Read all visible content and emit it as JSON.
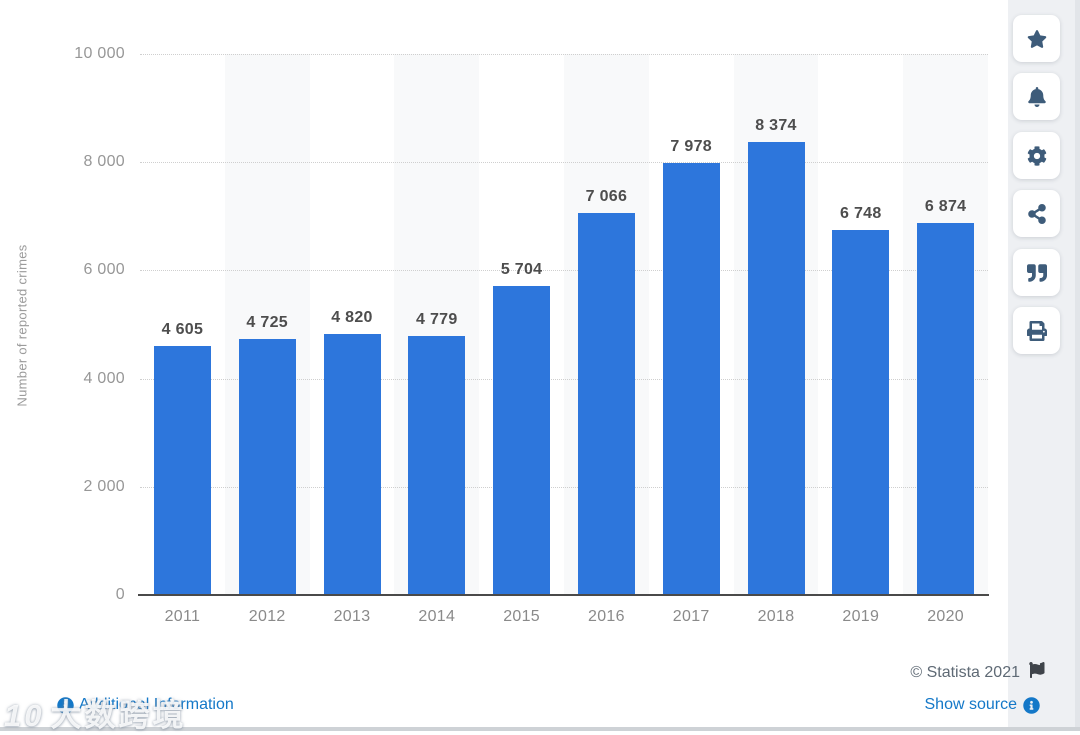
{
  "chart_data": {
    "type": "bar",
    "title": "",
    "xlabel": "",
    "ylabel": "Number of reported crimes",
    "categories": [
      "2011",
      "2012",
      "2013",
      "2014",
      "2015",
      "2016",
      "2017",
      "2018",
      "2019",
      "2020"
    ],
    "values": [
      4605,
      4725,
      4820,
      4779,
      5704,
      7066,
      7978,
      8374,
      6748,
      6874
    ],
    "value_labels": [
      "4 605",
      "4 725",
      "4 820",
      "4 779",
      "5 704",
      "7 066",
      "7 978",
      "8 374",
      "6 748",
      "6 874"
    ],
    "ylim": [
      0,
      10000
    ],
    "yticks": [
      0,
      2000,
      4000,
      6000,
      8000,
      10000
    ],
    "ytick_labels": [
      "0",
      "2 000",
      "4 000",
      "6 000",
      "8 000",
      "10 000"
    ],
    "grid": "horizontal-dotted",
    "legend": "none",
    "bar_color": "#2d76dc",
    "alternating_band_color": "#f8f9fa"
  },
  "sidebar": {
    "buttons": [
      {
        "name": "favorite",
        "icon": "star-icon"
      },
      {
        "name": "notifications",
        "icon": "bell-icon"
      },
      {
        "name": "settings",
        "icon": "gear-icon"
      },
      {
        "name": "share",
        "icon": "share-icon"
      },
      {
        "name": "cite",
        "icon": "quote-icon"
      },
      {
        "name": "print",
        "icon": "print-icon"
      }
    ]
  },
  "footer": {
    "additional_info_label": "Additional Information",
    "copyright": "© Statista 2021",
    "show_source_label": "Show source"
  },
  "watermark": {
    "logo": "10",
    "text": "大数跨境"
  },
  "colors": {
    "link_blue": "#1478c8",
    "icon_navy": "#3e5c7a",
    "bar_blue": "#2d76dc",
    "copyright_gray": "#5f6a75"
  }
}
